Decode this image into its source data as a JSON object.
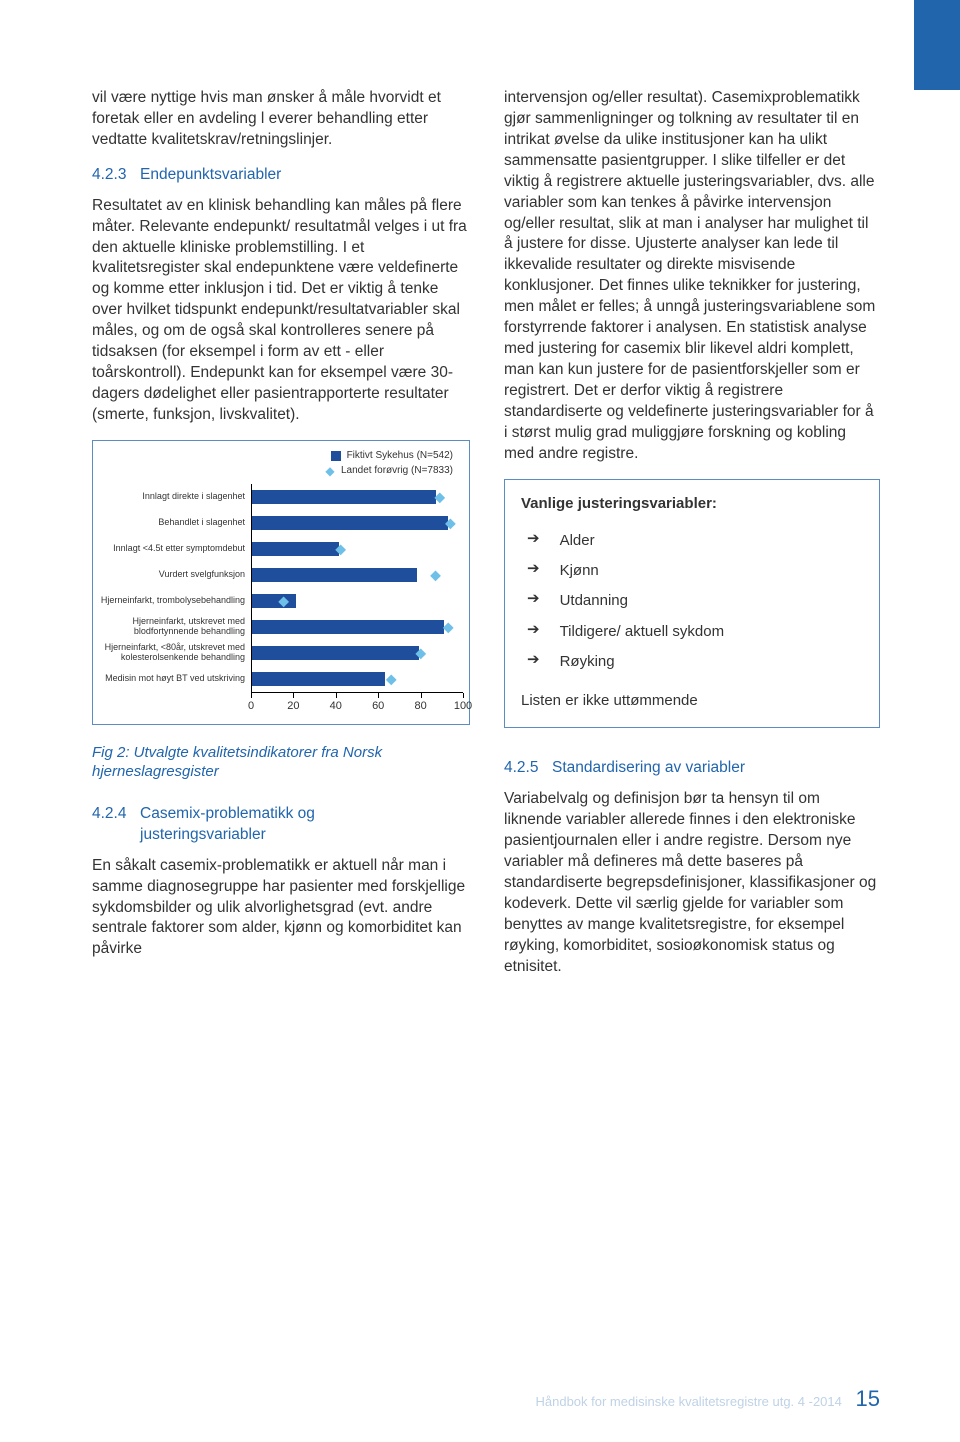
{
  "colors": {
    "accent": "#2165ad",
    "chart_bar": "#1f4e9c",
    "chart_marker": "#6ec0e8",
    "chart_border": "#5b8cc2",
    "text": "#333333",
    "footer_muted": "#bfd2e6"
  },
  "left": {
    "intro_para": "vil være nyttige hvis man ønsker å måle hvorvidt et foretak eller en avdeling l everer behandling etter vedtatte kvalitetskrav/retningslinjer.",
    "sec_423_num": "4.2.3",
    "sec_423_title": "Endepunktsvariabler",
    "sec_423_body": "Resultatet av en klinisk behandling kan måles på flere måter. Relevante endepunkt/ resultatmål velges i ut fra den aktuelle kliniske problemstilling. I et kvalitetsregister skal endepunktene være veldefinerte og komme etter inklusjon i tid. Det er viktig å tenke over hvilket tidspunkt endepunkt/resultatvariabler skal måles, og om de også skal kontrolleres senere på tidsaksen (for eksempel i form av ett - eller toårskontroll). Endepunkt kan for eksempel være 30-dagers dødelighet eller pasientrapporterte resultater (smerte, funksjon, livskvalitet).",
    "fig_caption": "Fig 2: Utvalgte kvalitetsindikatorer fra Norsk hjerneslagresgister",
    "sec_424_num": "4.2.4",
    "sec_424_title_l1": "Casemix-problematikk og",
    "sec_424_title_l2": "justeringsvariabler",
    "sec_424_body": "En såkalt casemix-problematikk er aktuell når man i samme diagnosegruppe har pasienter med forskjellige sykdomsbilder og ulik alvorlighetsgrad (evt. andre sentrale faktorer som alder, kjønn og komorbiditet kan påvirke"
  },
  "right": {
    "top_para": "intervensjon og/eller resultat). Casemixproblematikk gjør sammenligninger og tolkning av resultater til en intrikat øvelse da ulike institusjoner kan ha ulikt sammensatte pasientgrupper. I slike tilfeller er det viktig å registrere aktuelle justeringsvariabler, dvs. alle variabler som kan tenkes å påvirke intervensjon og/eller resultat, slik at man i analyser har mulighet til å justere for disse. Ujusterte analyser kan lede til ikkevalide resultater og direkte misvisende konklusjoner. Det finnes ulike teknikker for justering, men målet er felles; å unngå justeringsvariablene som forstyrrende faktorer i analysen. En statistisk analyse med justering for casemix blir likevel aldri komplett, man kan kun justere for de pasientforskjeller som er registrert. Det er derfor viktig å registrere standardiserte og veldefinerte justeringsvariabler for å i størst mulig grad muliggjøre forskning og kobling med andre registre.",
    "info_title": "Vanlige justeringsvariabler:",
    "info_items": [
      "Alder",
      "Kjønn",
      "Utdanning",
      "Tildigere/ aktuell sykdom",
      "Røyking"
    ],
    "info_footnote": "Listen er ikke uttømmende",
    "sec_425_num": "4.2.5",
    "sec_425_title": "Standardisering av variabler",
    "sec_425_body": "Variabelvalg og definisjon bør ta hensyn til om liknende variabler allerede finnes i den elektroniske pasientjournalen eller i andre registre. Dersom nye variabler må defineres må dette baseres på standardiserte begrepsdefinisjoner, klassifikasjoner og kodeverk. Dette vil særlig gjelde for variabler som benyttes av mange kvalitetsregistre, for eksempel røyking, komorbiditet, sosioøkonomisk status og etnisitet."
  },
  "chart": {
    "type": "bar-with-marker",
    "legend": {
      "series_a": "Fiktivt Sykehus (N=542)",
      "series_b": "Landet forøvrig (N=7833)"
    },
    "xlim": [
      0,
      100
    ],
    "ticks": [
      0,
      20,
      40,
      60,
      80,
      100
    ],
    "bar_color": "#1f4e9c",
    "marker_color": "#6ec0e8",
    "rows": [
      {
        "label": "Innlagt direkte i slagenhet",
        "bar": 87,
        "marker": 89
      },
      {
        "label": "Behandlet i slagenhet",
        "bar": 93,
        "marker": 94
      },
      {
        "label": "Innlagt <4.5t etter symptomdebut",
        "bar": 41,
        "marker": 42
      },
      {
        "label": "Vurdert svelgfunksjon",
        "bar": 78,
        "marker": 87
      },
      {
        "label": "Hjerneinfarkt, trombolysebehandling",
        "bar": 21,
        "marker": 15
      },
      {
        "label": "Hjerneinfarkt, utskrevet med\nblodfortynnende behandling",
        "bar": 91,
        "marker": 93
      },
      {
        "label": "Hjerneinfarkt, <80år, utskrevet med\nkolesterolsenkende behandling",
        "bar": 79,
        "marker": 80
      },
      {
        "label": "Medisin mot høyt BT ved utskriving",
        "bar": 63,
        "marker": 66
      }
    ]
  },
  "footer": {
    "text": "Håndbok for medisinske kvalitetsregistre utg. 4 -2014",
    "page": "15"
  }
}
